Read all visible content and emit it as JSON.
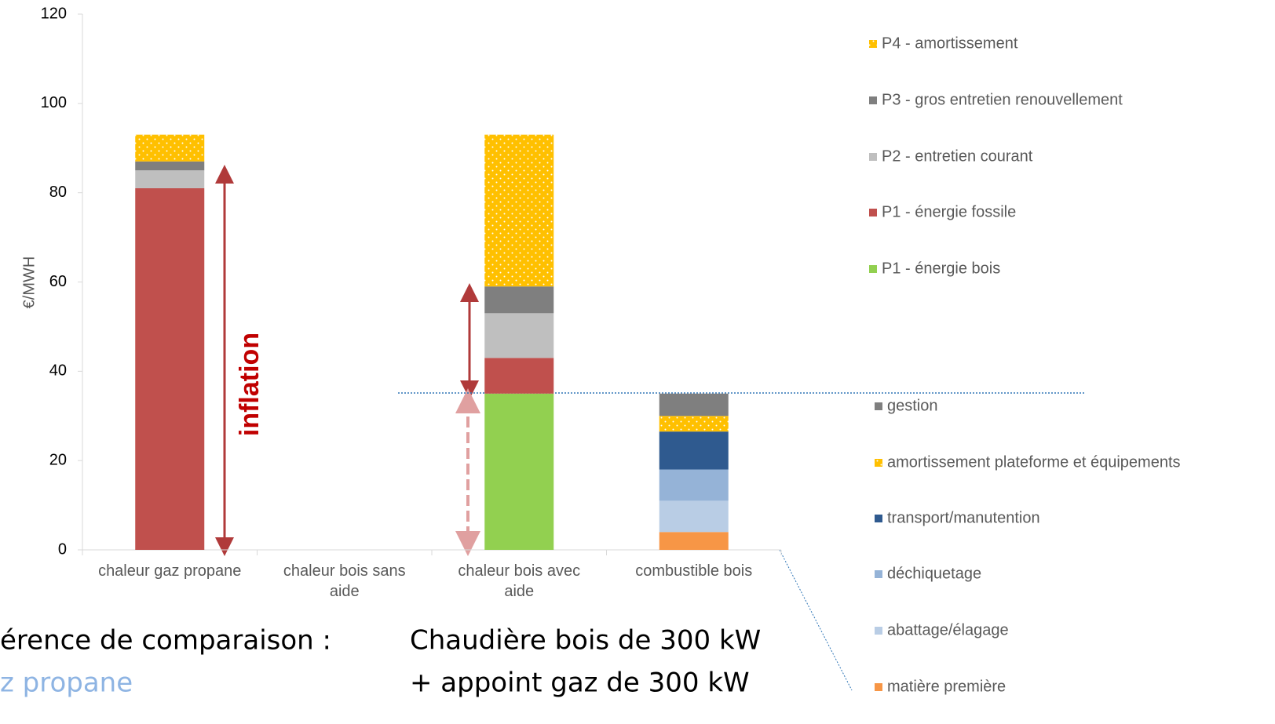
{
  "chart_data": {
    "type": "stacked_bar",
    "ylabel": "€/MWH",
    "categories": [
      "chaleur gaz propane",
      "chaleur bois sans aide",
      "chaleur bois avec aide",
      "combustible bois"
    ],
    "series": [
      {
        "name": "matière première",
        "color": "#f79646",
        "values": [
          null,
          null,
          null,
          4
        ]
      },
      {
        "name": "abattage/élagage",
        "color": "#b9cde5",
        "values": [
          null,
          null,
          null,
          7
        ]
      },
      {
        "name": "déchiquetage",
        "color": "#95b3d7",
        "values": [
          null,
          null,
          null,
          7
        ]
      },
      {
        "name": "transport/manutention",
        "color": "#2f5a8f",
        "values": [
          null,
          null,
          null,
          8.5
        ]
      },
      {
        "name": "amortissement plateforme et équipements",
        "color": "#ffc000",
        "pattern": "dots",
        "values": [
          null,
          null,
          null,
          3.5
        ]
      },
      {
        "name": "gestion",
        "color": "#7f7f7f",
        "values": [
          null,
          null,
          null,
          5
        ]
      },
      {
        "name": "P1 - énergie bois",
        "color": "#92d050",
        "values": [
          null,
          null,
          35,
          null
        ]
      },
      {
        "name": "P1 - énergie fossile",
        "color": "#c0504d",
        "values": [
          81,
          null,
          8,
          null
        ]
      },
      {
        "name": "P2 - entretien courant",
        "color": "#bfbfbf",
        "values": [
          4,
          null,
          10,
          null
        ]
      },
      {
        "name": "P3 - gros entretien renouvellement",
        "color": "#7f7f7f",
        "values": [
          2,
          null,
          6,
          null
        ]
      },
      {
        "name": "P4 - amortissement",
        "color": "#ffc000",
        "pattern": "dots",
        "values": [
          6,
          null,
          34,
          null
        ]
      }
    ],
    "ylim": [
      0,
      120
    ],
    "yticks": [
      0,
      20,
      40,
      60,
      80,
      100,
      120
    ],
    "annotations": [
      "inflation",
      "érence de comparaison :",
      "z propane",
      "Chaudière bois de 300 kW",
      "+ appoint gaz de 300 kW"
    ]
  }
}
